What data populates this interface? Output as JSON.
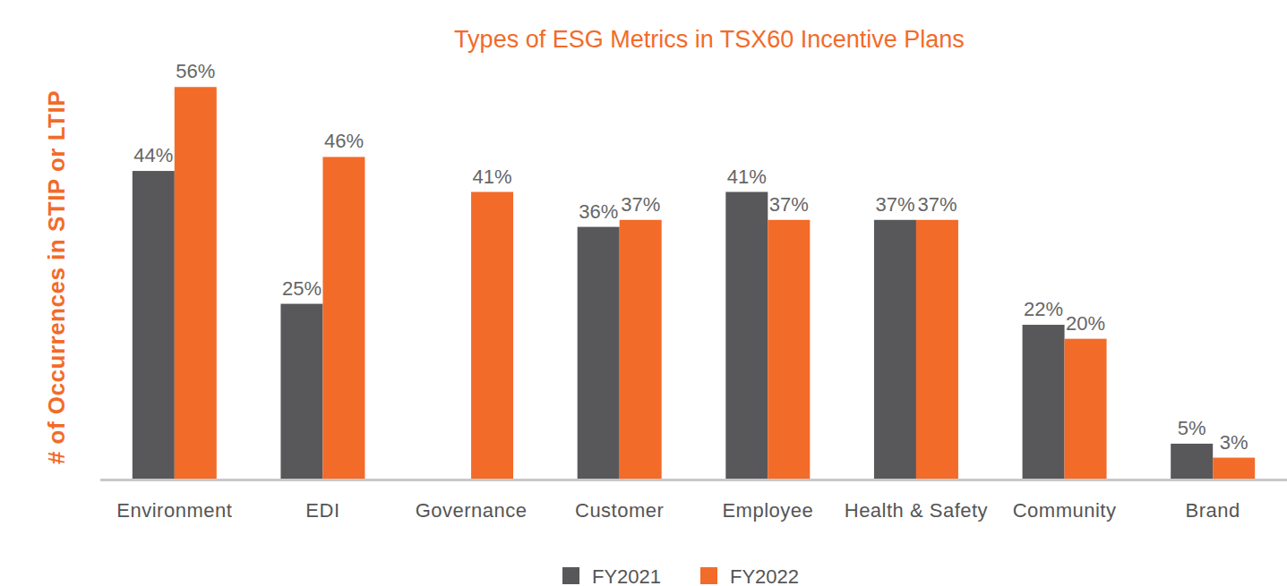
{
  "chart_data": {
    "type": "bar",
    "title": "Types of ESG Metrics in TSX60 Incentive Plans",
    "y_label": "# of Occurrences in STIP or LTIP",
    "categories": [
      "Environment",
      "EDI",
      "Governance",
      "Customer",
      "Employee",
      "Health & Safety",
      "Community",
      "Brand"
    ],
    "series": [
      {
        "name": "FY2021",
        "color": "#58585a",
        "values": [
          44,
          25,
          null,
          36,
          41,
          37,
          22,
          5
        ],
        "value_labels": [
          "44%",
          "25%",
          null,
          "36%",
          "41%",
          "37%",
          "22%",
          "5%"
        ]
      },
      {
        "name": "FY2022",
        "color": "#f26b29",
        "values": [
          56,
          46,
          41,
          37,
          37,
          37,
          20,
          3
        ],
        "value_labels": [
          "56%",
          "46%",
          "41%",
          "37%",
          "37%",
          "37%",
          "20%",
          "3%"
        ]
      }
    ],
    "ylim": [
      0,
      60
    ],
    "data_labels": true,
    "tick_labels": "x",
    "grid": false,
    "legend": "bottom"
  }
}
